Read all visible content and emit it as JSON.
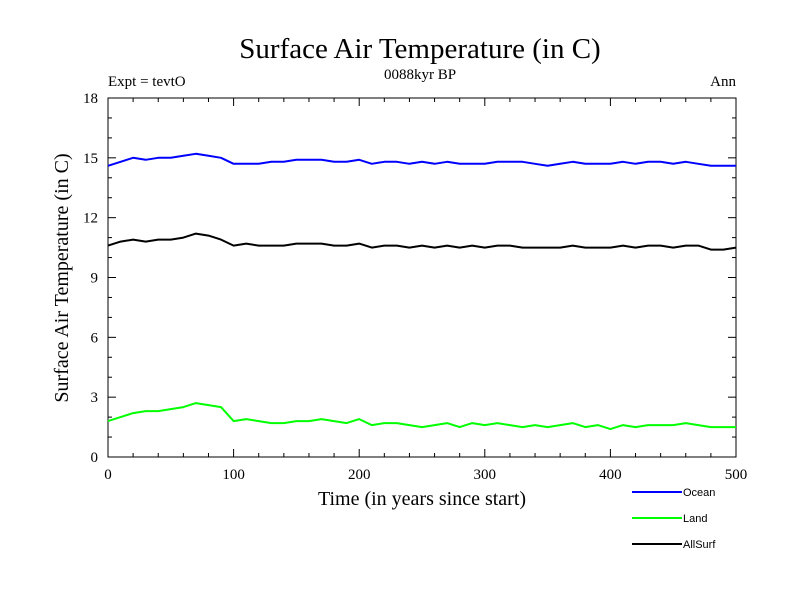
{
  "chart_data": {
    "type": "line",
    "title": "Surface Air Temperature (in C)",
    "subtitle": "0088kyr BP",
    "left_note": "Expt = tevtO",
    "right_note": "Ann",
    "xlabel": "Time (in years since start)",
    "ylabel": "Surface Air Temperature (in C)",
    "xlim": [
      0,
      500
    ],
    "ylim": [
      0,
      18
    ],
    "xticks": [
      0,
      100,
      200,
      300,
      400,
      500
    ],
    "yticks": [
      0,
      3,
      6,
      9,
      12,
      15,
      18
    ],
    "grid": false,
    "legend_position": "bottom-right",
    "x": [
      0,
      10,
      20,
      30,
      40,
      50,
      60,
      70,
      80,
      90,
      100,
      110,
      120,
      130,
      140,
      150,
      160,
      170,
      180,
      190,
      200,
      210,
      220,
      230,
      240,
      250,
      260,
      270,
      280,
      290,
      300,
      310,
      320,
      330,
      340,
      350,
      360,
      370,
      380,
      390,
      400,
      410,
      420,
      430,
      440,
      450,
      460,
      470,
      480,
      490,
      500
    ],
    "series": [
      {
        "name": "Ocean",
        "color": "#0000ff",
        "values": [
          14.6,
          14.8,
          15.0,
          14.9,
          15.0,
          15.0,
          15.1,
          15.2,
          15.1,
          15.0,
          14.7,
          14.7,
          14.7,
          14.8,
          14.8,
          14.9,
          14.9,
          14.9,
          14.8,
          14.8,
          14.9,
          14.7,
          14.8,
          14.8,
          14.7,
          14.8,
          14.7,
          14.8,
          14.7,
          14.7,
          14.7,
          14.8,
          14.8,
          14.8,
          14.7,
          14.6,
          14.7,
          14.8,
          14.7,
          14.7,
          14.7,
          14.8,
          14.7,
          14.8,
          14.8,
          14.7,
          14.8,
          14.7,
          14.6,
          14.6,
          14.6
        ]
      },
      {
        "name": "Land",
        "color": "#00ff00",
        "values": [
          1.8,
          2.0,
          2.2,
          2.3,
          2.3,
          2.4,
          2.5,
          2.7,
          2.6,
          2.5,
          1.8,
          1.9,
          1.8,
          1.7,
          1.7,
          1.8,
          1.8,
          1.9,
          1.8,
          1.7,
          1.9,
          1.6,
          1.7,
          1.7,
          1.6,
          1.5,
          1.6,
          1.7,
          1.5,
          1.7,
          1.6,
          1.7,
          1.6,
          1.5,
          1.6,
          1.5,
          1.6,
          1.7,
          1.5,
          1.6,
          1.4,
          1.6,
          1.5,
          1.6,
          1.6,
          1.6,
          1.7,
          1.6,
          1.5,
          1.5,
          1.5
        ]
      },
      {
        "name": "AllSurf",
        "color": "#000000",
        "values": [
          10.6,
          10.8,
          10.9,
          10.8,
          10.9,
          10.9,
          11.0,
          11.2,
          11.1,
          10.9,
          10.6,
          10.7,
          10.6,
          10.6,
          10.6,
          10.7,
          10.7,
          10.7,
          10.6,
          10.6,
          10.7,
          10.5,
          10.6,
          10.6,
          10.5,
          10.6,
          10.5,
          10.6,
          10.5,
          10.6,
          10.5,
          10.6,
          10.6,
          10.5,
          10.5,
          10.5,
          10.5,
          10.6,
          10.5,
          10.5,
          10.5,
          10.6,
          10.5,
          10.6,
          10.6,
          10.5,
          10.6,
          10.6,
          10.4,
          10.4,
          10.5
        ]
      }
    ]
  }
}
